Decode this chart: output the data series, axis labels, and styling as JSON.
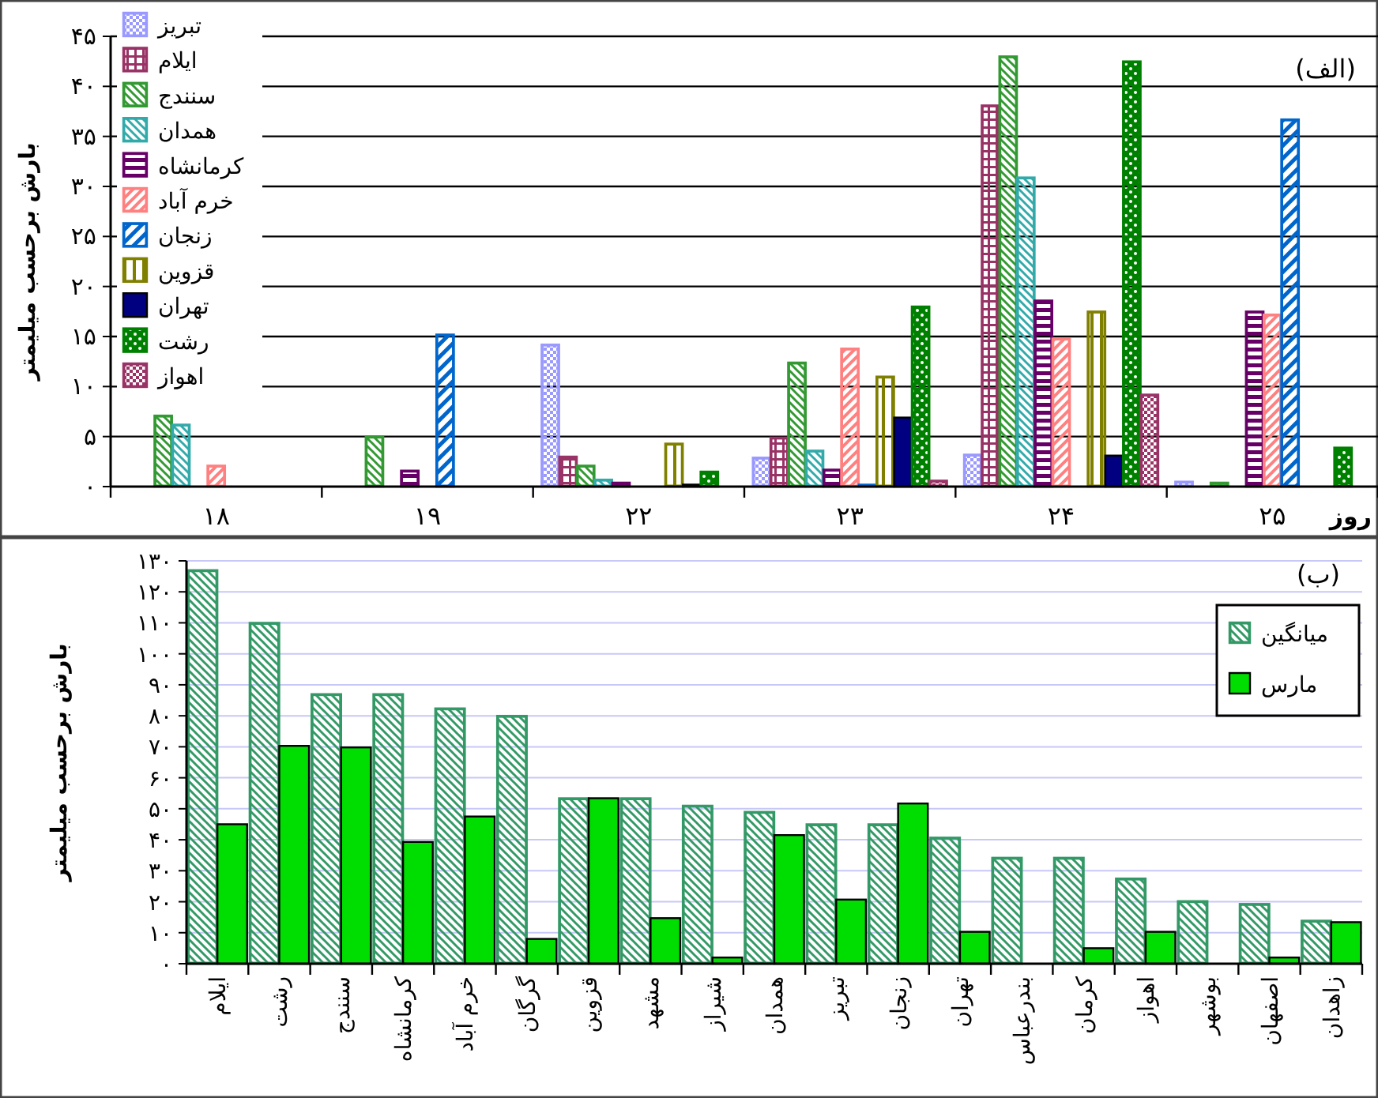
{
  "chart_data": [
    {
      "type": "bar",
      "ylabel": "بارش برحسب میلیمتر",
      "xlabel": "روز",
      "annotations": [
        "(الف)"
      ],
      "grid": "y",
      "legend": "top left",
      "categories": [
        "۱۸",
        "۱۹",
        "۲۲",
        "۲۳",
        "۲۴",
        "۲۵"
      ],
      "ylim": [
        0,
        45
      ],
      "yticks": [
        {
          "value": 0,
          "label": "۰"
        },
        {
          "value": 5,
          "label": "۵"
        },
        {
          "value": 10,
          "label": "۱۰"
        },
        {
          "value": 15,
          "label": "۱۵"
        },
        {
          "value": 20,
          "label": "۲۰"
        },
        {
          "value": 25,
          "label": "۲۵"
        },
        {
          "value": 30,
          "label": "۳۰"
        },
        {
          "value": 35,
          "label": "۳۵"
        },
        {
          "value": 40,
          "label": "۴۰"
        },
        {
          "value": 45,
          "label": "۴۵"
        }
      ],
      "series": [
        {
          "name": "تبریز",
          "color": "#9999ff",
          "values": [
            null,
            null,
            14.2,
            2.9,
            3.2,
            0.5
          ]
        },
        {
          "name": "ایلام",
          "color": "#993366",
          "values": [
            null,
            null,
            3.0,
            4.9,
            38.1,
            null
          ]
        },
        {
          "name": "سنندج",
          "color": "#339933",
          "values": [
            7.1,
            5.0,
            2.1,
            12.4,
            43.0,
            0.4
          ]
        },
        {
          "name": "همدان",
          "color": "#33aaaa",
          "values": [
            6.2,
            null,
            0.7,
            3.6,
            30.9,
            null
          ]
        },
        {
          "name": "کرمانشاه",
          "color": "#660066",
          "values": [
            null,
            1.6,
            0.4,
            1.7,
            18.6,
            17.5
          ]
        },
        {
          "name": "خرم آباد",
          "color": "#ff8080",
          "values": [
            2.1,
            null,
            null,
            13.8,
            14.8,
            17.2
          ]
        },
        {
          "name": "زنجان",
          "color": "#0066cc",
          "values": [
            null,
            15.2,
            null,
            0.2,
            null,
            36.7
          ]
        },
        {
          "name": "قزوین",
          "color": "#808000",
          "values": [
            null,
            null,
            4.3,
            11.0,
            17.5,
            null
          ]
        },
        {
          "name": "تهران",
          "color": "#000080",
          "values": [
            null,
            null,
            0.2,
            6.9,
            3.1,
            null
          ]
        },
        {
          "name": "رشت",
          "color": "#008000",
          "values": [
            null,
            null,
            1.5,
            18.0,
            42.5,
            3.9
          ]
        },
        {
          "name": "اهواز",
          "color": "#993366",
          "values": [
            null,
            null,
            null,
            0.6,
            9.2,
            null
          ]
        }
      ]
    },
    {
      "type": "bar",
      "ylabel": "بارش برحسب میلیمتر",
      "annotations": [
        "(ب)"
      ],
      "grid": "y",
      "legend": "top right",
      "categories": [
        "ایلام",
        "رشت",
        "سنندج",
        "کرمانشاه",
        "خرم آباد",
        "گرگان",
        "قزوین",
        "مشهد",
        "شیراز",
        "همدان",
        "تبریز",
        "زنجان",
        "تهران",
        "بندرعباس",
        "کرمان",
        "اهواز",
        "بوشهر",
        "اصفهان",
        "زاهدان"
      ],
      "ylim": [
        0,
        130
      ],
      "yticks": [
        {
          "value": 0,
          "label": "۰"
        },
        {
          "value": 10,
          "label": "۱۰"
        },
        {
          "value": 20,
          "label": "۲۰"
        },
        {
          "value": 30,
          "label": "۳۰"
        },
        {
          "value": 40,
          "label": "۴۰"
        },
        {
          "value": 50,
          "label": "۵۰"
        },
        {
          "value": 60,
          "label": "۶۰"
        },
        {
          "value": 70,
          "label": "۷۰"
        },
        {
          "value": 80,
          "label": "۸۰"
        },
        {
          "value": 90,
          "label": "۹۰"
        },
        {
          "value": 100,
          "label": "۱۰۰"
        },
        {
          "value": 110,
          "label": "۱۱۰"
        },
        {
          "value": 120,
          "label": "۱۲۰"
        },
        {
          "value": 130,
          "label": "۱۳۰"
        }
      ],
      "series": [
        {
          "name": "میانگین",
          "color": "#339966",
          "values": [
            127,
            110,
            87,
            87,
            82.4,
            80,
            53.4,
            53.4,
            51,
            49,
            45,
            45,
            40.7,
            34.2,
            34.2,
            27.5,
            20.2,
            19.3,
            13.9
          ]
        },
        {
          "name": "مارس",
          "color": "#00dd00",
          "values": [
            45,
            70.3,
            69.8,
            39.3,
            47.5,
            8,
            53.4,
            14.7,
            2,
            41.5,
            20.7,
            51.7,
            10.3,
            null,
            5,
            10.3,
            null,
            2,
            13.4
          ]
        }
      ]
    }
  ]
}
